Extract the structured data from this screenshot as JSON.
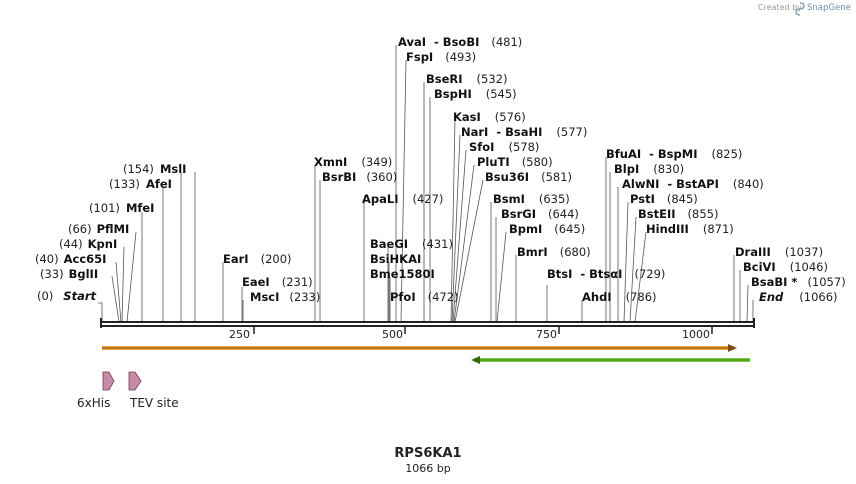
{
  "credit": {
    "prefix": "Created by",
    "brand": "SnapGene"
  },
  "map": {
    "name": "RPS6KA1",
    "length_label": "1066 bp",
    "length": 1066,
    "ticks": [
      250,
      500,
      750,
      1000
    ]
  },
  "sites": [
    {
      "name": "Start",
      "pos": "(0)",
      "italic": true
    },
    {
      "name": "BglII",
      "pos": "(33)"
    },
    {
      "name": "Acc65I",
      "pos": "(40)"
    },
    {
      "name": "KpnI",
      "pos": "(44)"
    },
    {
      "name": "PflMI",
      "pos": "(66)"
    },
    {
      "name": "MfeI",
      "pos": "(101)"
    },
    {
      "name": "AfeI",
      "pos": "(133)"
    },
    {
      "name": "MslI",
      "pos": "(154)"
    },
    {
      "name": "EarI",
      "pos": "(200)"
    },
    {
      "name": "EaeI",
      "pos": "(231)"
    },
    {
      "name": "MscI",
      "pos": "(233)"
    },
    {
      "name": "XmnI",
      "pos": "(349)"
    },
    {
      "name": "BsrBI",
      "pos": "(360)"
    },
    {
      "name": "ApaLI",
      "pos": "(427)"
    },
    {
      "name": "BaeGI",
      "pos": "(431)"
    },
    {
      "name": "BsiHKAI",
      "pos": ""
    },
    {
      "name": "Bme1580I",
      "pos": ""
    },
    {
      "name": "PfoI",
      "pos": "(472)"
    },
    {
      "name": "AvaI  - BsoBI",
      "pos": "(481)"
    },
    {
      "name": "FspI",
      "pos": "(493)"
    },
    {
      "name": "BseRI",
      "pos": "(532)"
    },
    {
      "name": "BspHI",
      "pos": "(545)"
    },
    {
      "name": "KasI",
      "pos": "(576)"
    },
    {
      "name": "NarI  - BsaHI",
      "pos": "(577)"
    },
    {
      "name": "SfoI",
      "pos": "(578)"
    },
    {
      "name": "PluTI",
      "pos": "(580)"
    },
    {
      "name": "Bsu36I",
      "pos": "(581)"
    },
    {
      "name": "BsmI",
      "pos": "(635)"
    },
    {
      "name": "BsrGI",
      "pos": "(644)"
    },
    {
      "name": "BpmI",
      "pos": "(645)"
    },
    {
      "name": "BmrI",
      "pos": "(680)"
    },
    {
      "name": "BtsI  - BtsαI",
      "pos": "(729)"
    },
    {
      "name": "AhdI",
      "pos": "(786)"
    },
    {
      "name": "BfuAI  - BspMI",
      "pos": "(825)"
    },
    {
      "name": "BlpI",
      "pos": "(830)"
    },
    {
      "name": "AlwNI  - BstAPI",
      "pos": "(840)"
    },
    {
      "name": "PstI",
      "pos": "(845)"
    },
    {
      "name": "BstEII",
      "pos": "(855)"
    },
    {
      "name": "HindIII",
      "pos": "(871)"
    },
    {
      "name": "DraIII",
      "pos": "(1037)"
    },
    {
      "name": "BciVI",
      "pos": "(1046)"
    },
    {
      "name": "BsaBI *",
      "pos": "(1057)"
    },
    {
      "name": "End",
      "pos": "(1066)",
      "italic": true
    }
  ],
  "features": [
    {
      "name": "6xHis"
    },
    {
      "name": "TEV site"
    }
  ],
  "colors": {
    "orf_orange": "#f2a23b",
    "orf_green": "#7ad03a",
    "feature_pink": "#c98aa8"
  }
}
